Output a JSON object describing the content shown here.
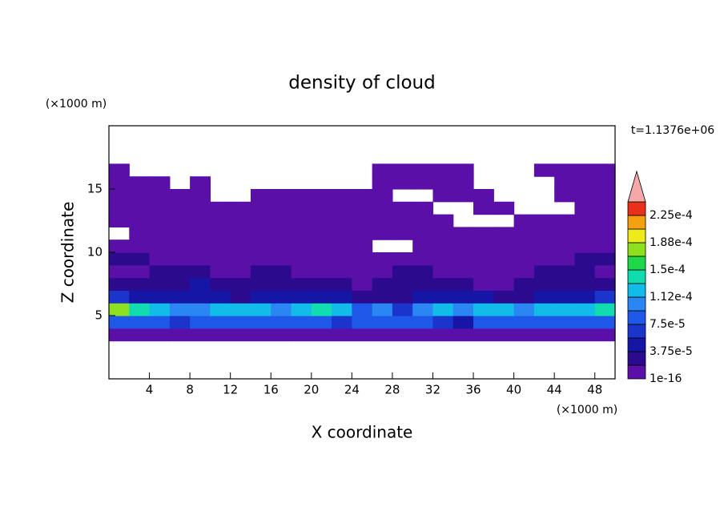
{
  "chart_data": {
    "type": "heatmap",
    "title": "density of cloud",
    "x_label": "X coordinate",
    "y_label": "Z coordinate",
    "x_unit": "(×1000 m)",
    "y_unit": "(×1000 m)",
    "annotation": "t=1.1376e+06",
    "xlim": [
      0,
      50
    ],
    "ylim": [
      0,
      20
    ],
    "xticks": [
      4,
      8,
      12,
      16,
      20,
      24,
      28,
      32,
      36,
      40,
      44,
      48
    ],
    "yticks": [
      5,
      10,
      15
    ],
    "x": [
      1,
      3,
      5,
      7,
      9,
      11,
      13,
      15,
      17,
      19,
      21,
      23,
      25,
      27,
      29,
      31,
      33,
      35,
      37,
      39,
      41,
      43,
      45,
      47,
      49
    ],
    "y": [
      3.5,
      4.5,
      5.5,
      6.5,
      7.5,
      8.5,
      9.5,
      10.5,
      11.5,
      12.5,
      13.5,
      14.5,
      15.5,
      16.5
    ],
    "values": [
      [
        1e-06,
        1e-06,
        1e-06,
        1e-06,
        1e-06,
        1e-06,
        1e-06,
        1e-06,
        1e-06,
        1e-06,
        1e-06,
        1e-06,
        1e-06,
        1e-06,
        1e-06,
        1e-06,
        1e-06,
        1e-06,
        1e-06,
        1e-06,
        1e-06,
        1e-06,
        1e-06,
        1e-06,
        1e-06
      ],
      [
        8e-05,
        9e-05,
        8e-05,
        7e-05,
        8e-05,
        8e-05,
        9e-05,
        8e-05,
        8e-05,
        9e-05,
        8e-05,
        7e-05,
        8e-05,
        8e-05,
        9e-05,
        8e-05,
        7e-05,
        4e-05,
        8e-05,
        9e-05,
        8e-05,
        8e-05,
        9e-05,
        8e-05,
        9e-05
      ],
      [
        0.00017,
        0.00014,
        0.00012,
        0.00011,
        0.0001,
        0.00012,
        0.00013,
        0.00012,
        0.00011,
        0.00012,
        0.00014,
        0.00012,
        8e-05,
        0.0001,
        6e-05,
        0.00011,
        0.00012,
        0.00011,
        0.00013,
        0.00012,
        0.0001,
        0.00012,
        0.00013,
        0.00013,
        0.00014
      ],
      [
        6e-05,
        5e-05,
        4e-05,
        4e-05,
        5e-05,
        4e-05,
        3e-05,
        4e-05,
        5e-05,
        4e-05,
        5e-05,
        4e-05,
        3e-05,
        3e-05,
        2e-05,
        4e-05,
        5e-05,
        4e-05,
        4e-05,
        3e-05,
        3e-05,
        4e-05,
        4e-05,
        5e-05,
        6e-05
      ],
      [
        2e-05,
        2e-05,
        2e-05,
        3e-05,
        4e-05,
        3e-05,
        2e-05,
        3e-05,
        3e-05,
        2e-05,
        2e-05,
        2e-05,
        1e-06,
        2e-05,
        2e-05,
        3e-05,
        3e-05,
        2e-05,
        1e-06,
        1e-06,
        2e-05,
        2e-05,
        3e-05,
        3e-05,
        2e-05
      ],
      [
        1e-06,
        1e-06,
        2e-05,
        2e-05,
        2e-05,
        1e-06,
        1e-06,
        2e-05,
        2e-05,
        1e-06,
        1e-06,
        1e-06,
        1e-06,
        1e-06,
        2e-05,
        2e-05,
        1e-06,
        1e-06,
        1e-06,
        1e-06,
        1e-06,
        2e-05,
        2e-05,
        2e-05,
        1e-06
      ],
      [
        2e-05,
        2e-05,
        1e-06,
        1e-06,
        1e-06,
        1e-06,
        1e-06,
        1e-06,
        1e-06,
        1e-06,
        1e-06,
        1e-06,
        1e-06,
        1e-06,
        1e-06,
        1e-06,
        1e-06,
        1e-06,
        1e-06,
        1e-06,
        1e-06,
        1e-06,
        1e-06,
        2e-05,
        2e-05
      ],
      [
        1e-06,
        1e-06,
        1e-06,
        1e-06,
        1e-06,
        1e-06,
        1e-06,
        1e-06,
        1e-06,
        1e-06,
        1e-06,
        1e-06,
        1e-06,
        null,
        null,
        1e-06,
        1e-06,
        1e-06,
        1e-06,
        1e-06,
        1e-06,
        1e-06,
        1e-06,
        1e-06,
        1e-06
      ],
      [
        null,
        1e-06,
        1e-06,
        1e-06,
        1e-06,
        1e-06,
        1e-06,
        1e-06,
        1e-06,
        1e-06,
        1e-06,
        1e-06,
        1e-06,
        1e-06,
        1e-06,
        1e-06,
        1e-06,
        1e-06,
        1e-06,
        1e-06,
        1e-06,
        1e-06,
        1e-06,
        1e-06,
        1e-06
      ],
      [
        1e-06,
        1e-06,
        1e-06,
        1e-06,
        1e-06,
        1e-06,
        1e-06,
        1e-06,
        1e-06,
        1e-06,
        1e-06,
        1e-06,
        1e-06,
        1e-06,
        1e-06,
        1e-06,
        1e-06,
        null,
        null,
        null,
        1e-06,
        1e-06,
        1e-06,
        1e-06,
        1e-06
      ],
      [
        1e-06,
        1e-06,
        1e-06,
        1e-06,
        1e-06,
        1e-06,
        1e-06,
        1e-06,
        1e-06,
        1e-06,
        1e-06,
        1e-06,
        1e-06,
        1e-06,
        1e-06,
        1e-06,
        null,
        null,
        1e-06,
        1e-06,
        null,
        null,
        null,
        1e-06,
        1e-06
      ],
      [
        1e-06,
        1e-06,
        1e-06,
        1e-06,
        1e-06,
        null,
        null,
        1e-06,
        1e-06,
        1e-06,
        1e-06,
        1e-06,
        1e-06,
        1e-06,
        null,
        null,
        1e-06,
        1e-06,
        1e-06,
        null,
        null,
        null,
        1e-06,
        1e-06,
        1e-06
      ],
      [
        1e-06,
        1e-06,
        1e-06,
        null,
        1e-06,
        null,
        null,
        null,
        null,
        null,
        null,
        null,
        null,
        1e-06,
        1e-06,
        1e-06,
        1e-06,
        1e-06,
        null,
        null,
        null,
        null,
        1e-06,
        1e-06,
        1e-06
      ],
      [
        1e-06,
        null,
        null,
        null,
        null,
        null,
        null,
        null,
        null,
        null,
        null,
        null,
        null,
        1e-06,
        1e-06,
        1e-06,
        1e-06,
        1e-06,
        null,
        null,
        null,
        1e-06,
        1e-06,
        1e-06,
        1e-06
      ]
    ],
    "colorbar": {
      "levels": [
        1e-16,
        1.875e-05,
        3.75e-05,
        5.625e-05,
        7.5e-05,
        9.375e-05,
        0.0001125,
        0.00013125,
        0.00015,
        0.00016875,
        0.0001875,
        0.00020625,
        0.000225,
        0.00024375
      ],
      "colors": [
        "#5a10a8",
        "#2c0a8e",
        "#1616a6",
        "#1a34cc",
        "#1e58e8",
        "#2a86f2",
        "#12bce8",
        "#10dcb0",
        "#1ed84a",
        "#8ee01e",
        "#eeea1c",
        "#f5a010",
        "#e8301a"
      ],
      "extend_color": "#f4a8a8",
      "ticks": [
        1e-16,
        {
          "value": 3.75e-05,
          "label": "3.75e-5"
        },
        {
          "value": 7.5e-05,
          "label": "7.5e-5"
        },
        {
          "value": 0.0001125,
          "label": "1.12e-4"
        },
        {
          "value": 0.00015,
          "label": "1.5e-4"
        },
        {
          "value": 0.0001875,
          "label": "1.88e-4"
        },
        {
          "value": 0.000225,
          "label": "2.25e-4"
        }
      ]
    }
  }
}
